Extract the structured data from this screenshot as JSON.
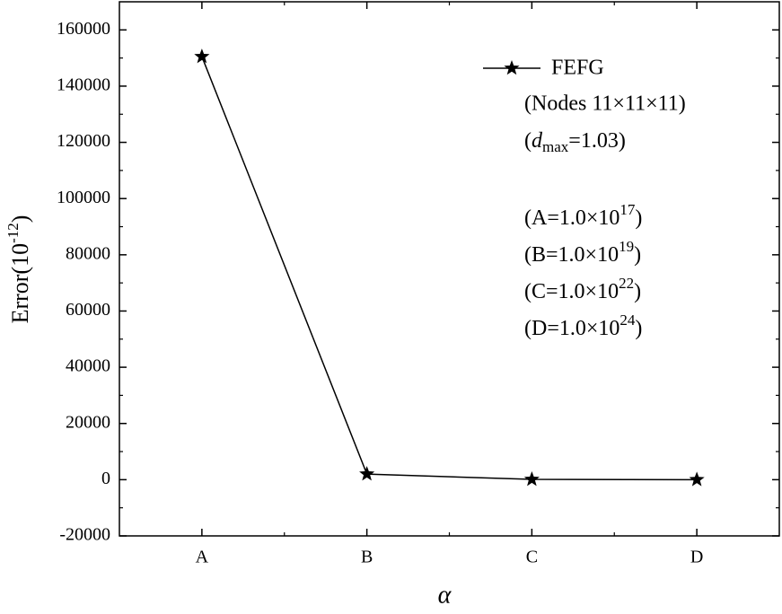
{
  "chart_data": {
    "type": "line",
    "x_label": "α",
    "y_label": {
      "base": "Error(10",
      "sup": "-12",
      "end": ")"
    },
    "categories": [
      "A",
      "B",
      "C",
      "D"
    ],
    "series": [
      {
        "name": "FEFG",
        "color": "#000000",
        "marker": "star",
        "values": [
          150500,
          2000,
          100,
          0
        ]
      }
    ],
    "ylim": [
      -20000,
      170000
    ],
    "yticks": [
      -20000,
      0,
      20000,
      40000,
      60000,
      80000,
      100000,
      120000,
      140000,
      160000
    ],
    "annotations": [
      {
        "text": "(Nodes 11×11×11)"
      },
      {
        "base": "(",
        "italic": "d",
        "sub": "max",
        "end": "=1.03)"
      },
      {
        "base": "(A=1.0×10",
        "sup": "17",
        "end": ")"
      },
      {
        "base": "(B=1.0×10",
        "sup": "19",
        "end": ")"
      },
      {
        "base": "(C=1.0×10",
        "sup": "22",
        "end": ")"
      },
      {
        "base": "(D=1.0×10",
        "sup": "24",
        "end": ")"
      }
    ]
  }
}
